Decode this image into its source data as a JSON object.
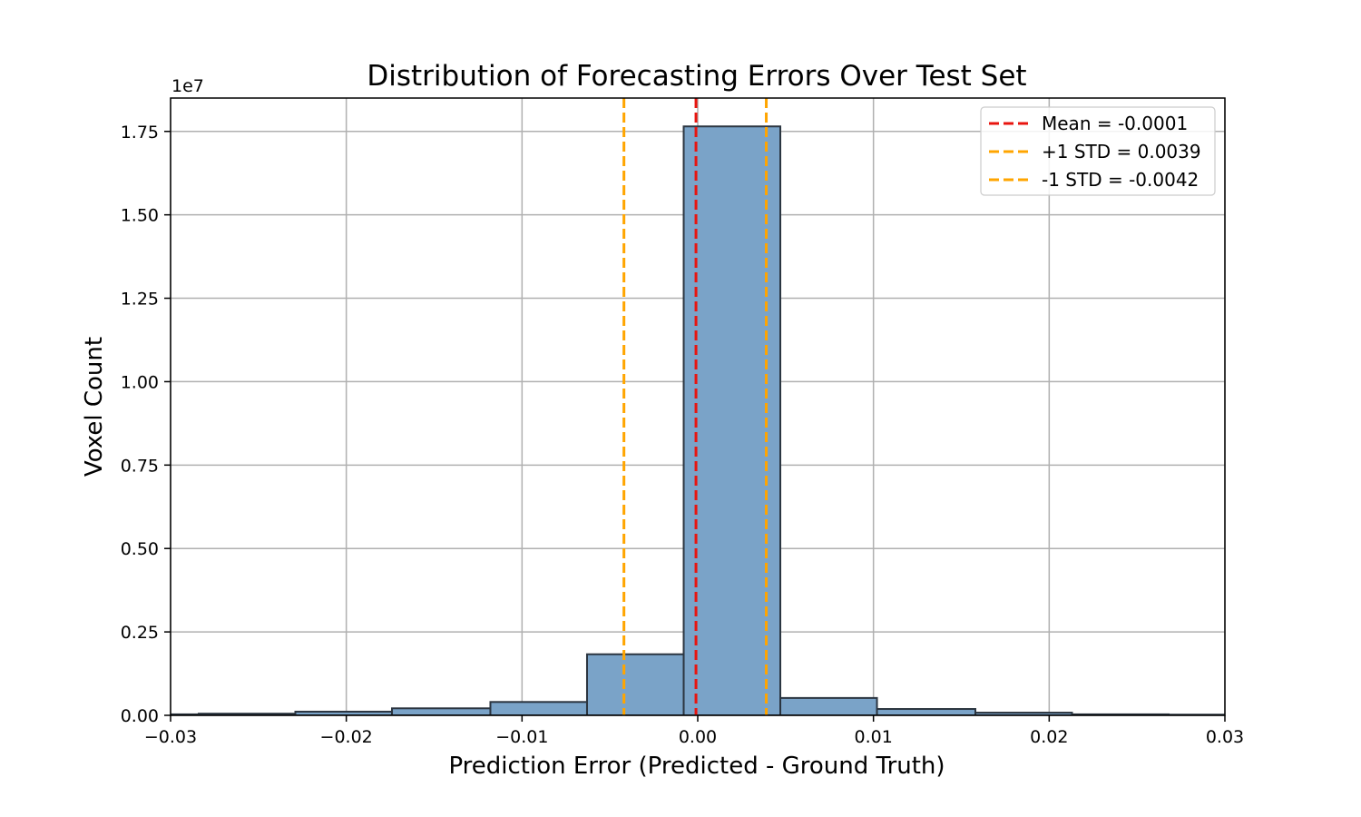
{
  "chart_data": {
    "type": "bar",
    "title": "Distribution of Forecasting Errors Over Test Set",
    "xlabel": "Prediction Error (Predicted - Ground Truth)",
    "ylabel": "Voxel Count",
    "y_scale_label": "1e7",
    "xlim": [
      -0.03,
      0.03
    ],
    "ylim": [
      0,
      1.85
    ],
    "x_ticks": [
      "−0.03",
      "−0.02",
      "−0.01",
      "0.00",
      "0.01",
      "0.02",
      "0.03"
    ],
    "x_tick_values": [
      -0.03,
      -0.02,
      -0.01,
      0.0,
      0.01,
      0.02,
      0.03
    ],
    "y_ticks": [
      "0.00",
      "0.25",
      "0.50",
      "0.75",
      "1.00",
      "1.25",
      "1.50",
      "1.75"
    ],
    "y_tick_values": [
      0.0,
      0.25,
      0.5,
      0.75,
      1.0,
      1.25,
      1.5,
      1.75
    ],
    "grid": true,
    "bins": [
      {
        "start": -0.0339,
        "end": -0.0284,
        "value": 0.003
      },
      {
        "start": -0.0284,
        "end": -0.0229,
        "value": 0.005
      },
      {
        "start": -0.0229,
        "end": -0.0174,
        "value": 0.011
      },
      {
        "start": -0.0174,
        "end": -0.0118,
        "value": 0.021
      },
      {
        "start": -0.0118,
        "end": -0.0063,
        "value": 0.04
      },
      {
        "start": -0.0063,
        "end": -0.0008,
        "value": 0.183
      },
      {
        "start": -0.0008,
        "end": 0.0047,
        "value": 1.765
      },
      {
        "start": 0.0047,
        "end": 0.0102,
        "value": 0.052
      },
      {
        "start": 0.0102,
        "end": 0.0158,
        "value": 0.019
      },
      {
        "start": 0.0158,
        "end": 0.0213,
        "value": 0.008
      },
      {
        "start": 0.0213,
        "end": 0.0268,
        "value": 0.003
      },
      {
        "start": 0.0268,
        "end": 0.0323,
        "value": 0.002
      }
    ],
    "bar_color": "#7aa3c8",
    "bar_edge_color": "#2b3540",
    "reference_lines": [
      {
        "x": -0.0001,
        "color": "#e8150f",
        "label": "Mean = -0.0001"
      },
      {
        "x": 0.0039,
        "color": "#ffa500",
        "label": "+1 STD = 0.0039"
      },
      {
        "x": -0.0042,
        "color": "#ffa500",
        "label": "-1 STD = -0.0042"
      }
    ],
    "legend_position": "top-right"
  }
}
